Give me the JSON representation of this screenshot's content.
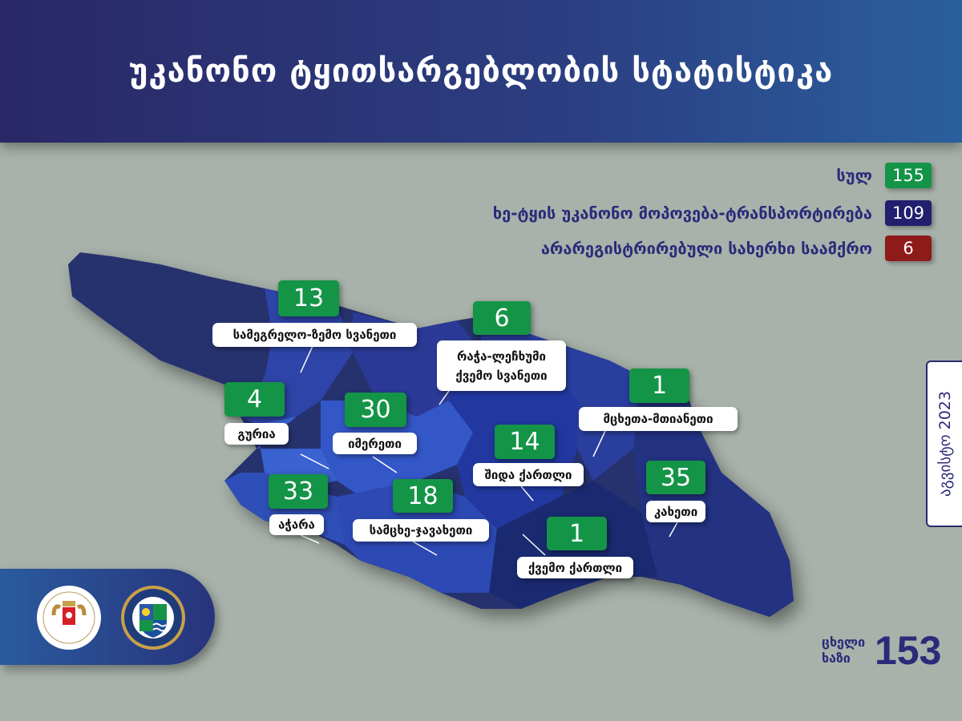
{
  "header": {
    "title": "უკანონო ტყითსარგებლობის სტატისტიკა"
  },
  "legend": [
    {
      "label": "სულ",
      "value": "155",
      "color": "#149447"
    },
    {
      "label": "ხე-ტყის უკანონო  მოპოვება-ტრანსპორტირება",
      "value": "109",
      "color": "#221f6e"
    },
    {
      "label": "არარეგისტრირებული სახერხი საამქრო",
      "value": "6",
      "color": "#8e1a1a"
    }
  ],
  "regions": [
    {
      "name": "სამეგრელო-ზემო სვანეთი",
      "value": "13"
    },
    {
      "name": "რაჭა-ლეჩხუმი\nქვემო სვანეთი",
      "value": "6"
    },
    {
      "name": "მცხეთა-მთიანეთი",
      "value": "1"
    },
    {
      "name": "გურია",
      "value": "4"
    },
    {
      "name": "იმერეთი",
      "value": "30"
    },
    {
      "name": "შიდა ქართლი",
      "value": "14"
    },
    {
      "name": "კახეთი",
      "value": "35"
    },
    {
      "name": "აჭარა",
      "value": "33"
    },
    {
      "name": "სამცხე-ჯავახეთი",
      "value": "18"
    },
    {
      "name": "ქვემო ქართლი",
      "value": "1"
    }
  ],
  "date_tab": "აგვისტო 2023",
  "hotline": {
    "label": "ცხელი ხაზი",
    "number": "153"
  },
  "logos": [
    {
      "name": "Ministry of Environmental Protection and Agriculture of Georgia"
    },
    {
      "name": "ეროვნული სატყეო სააგენტო"
    }
  ]
}
